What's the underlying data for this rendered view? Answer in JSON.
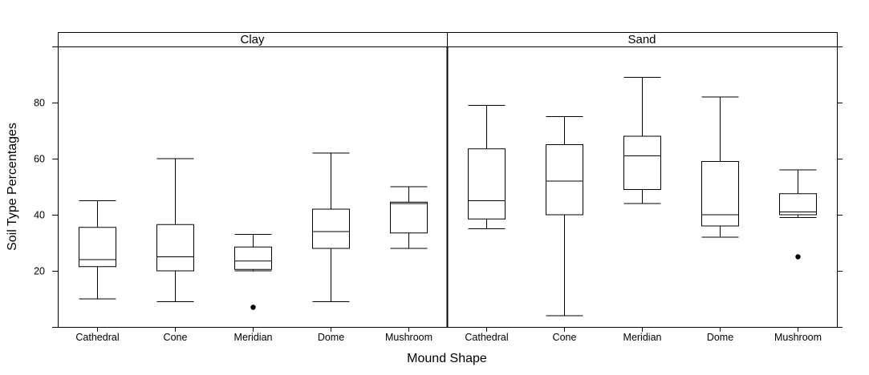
{
  "chart_data": {
    "type": "boxplot",
    "xlabel": "Mound Shape",
    "ylabel": "Soil Type Percentages",
    "categories": [
      "Cathedral",
      "Cone",
      "Meridian",
      "Dome",
      "Mushroom"
    ],
    "yticks": [
      20,
      40,
      60,
      80
    ],
    "ylim": [
      0,
      100
    ],
    "panels": [
      {
        "name": "Clay",
        "boxes": [
          {
            "category": "Cathedral",
            "min": 10,
            "q1": 21.5,
            "median": 24,
            "q3": 35.5,
            "max": 45,
            "outliers": []
          },
          {
            "category": "Cone",
            "min": 9,
            "q1": 20,
            "median": 25,
            "q3": 36.5,
            "max": 60,
            "outliers": []
          },
          {
            "category": "Meridian",
            "min": 20,
            "q1": 20.5,
            "median": 23.5,
            "q3": 28.5,
            "max": 33,
            "outliers": [
              7
            ]
          },
          {
            "category": "Dome",
            "min": 9,
            "q1": 28,
            "median": 34,
            "q3": 42,
            "max": 62,
            "outliers": []
          },
          {
            "category": "Mushroom",
            "min": 28,
            "q1": 33.5,
            "median": 44,
            "q3": 44.5,
            "max": 50,
            "outliers": []
          }
        ]
      },
      {
        "name": "Sand",
        "boxes": [
          {
            "category": "Cathedral",
            "min": 35,
            "q1": 38.5,
            "median": 45,
            "q3": 63.5,
            "max": 79,
            "outliers": []
          },
          {
            "category": "Cone",
            "min": 4,
            "q1": 40,
            "median": 52,
            "q3": 65,
            "max": 75,
            "outliers": []
          },
          {
            "category": "Meridian",
            "min": 44,
            "q1": 49,
            "median": 61,
            "q3": 68,
            "max": 89,
            "outliers": []
          },
          {
            "category": "Dome",
            "min": 32,
            "q1": 36,
            "median": 40,
            "q3": 59,
            "max": 82,
            "outliers": []
          },
          {
            "category": "Mushroom",
            "min": 39,
            "q1": 40,
            "median": 41,
            "q3": 47.5,
            "max": 56,
            "outliers": [
              25
            ]
          }
        ]
      }
    ]
  }
}
